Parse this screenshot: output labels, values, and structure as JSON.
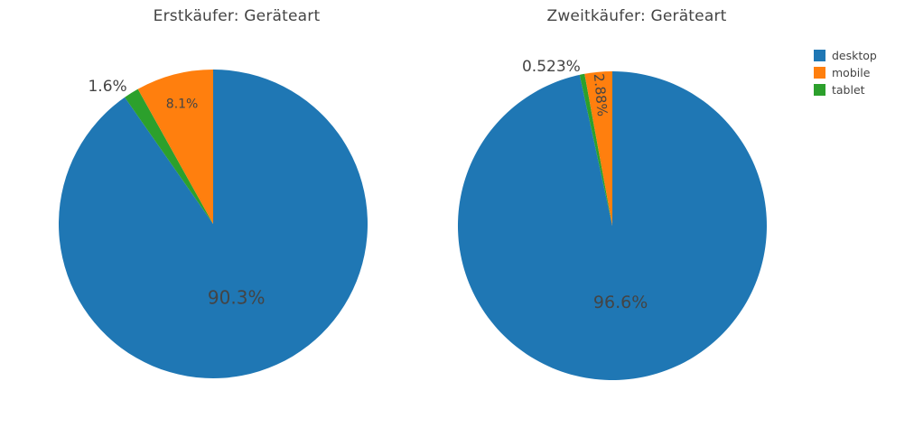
{
  "page": {
    "background": "#ffffff"
  },
  "legend": {
    "position": "top-right",
    "items": [
      {
        "label": "desktop",
        "color": "#1f77b4"
      },
      {
        "label": "mobile",
        "color": "#ff7f0e"
      },
      {
        "label": "tablet",
        "color": "#2ca02c"
      }
    ]
  },
  "chart_data": [
    {
      "type": "pie",
      "title": "Erstkäufer: Geräteart",
      "labels": [
        "desktop",
        "mobile",
        "tablet"
      ],
      "values": [
        90.3,
        8.1,
        1.6
      ],
      "value_labels": [
        "90.3%",
        "8.1%",
        "1.6%"
      ],
      "colors": [
        "#1f77b4",
        "#ff7f0e",
        "#2ca02c"
      ],
      "label_placement": [
        "inside",
        "inside",
        "outside"
      ],
      "label_rotated": [
        false,
        false,
        false
      ],
      "direction": "clockwise",
      "start_angle": "12-oclock",
      "draw_order": [
        "desktop",
        "tablet",
        "mobile"
      ],
      "label_color": "#444444",
      "legend_position": "right"
    },
    {
      "type": "pie",
      "title": "Zweitkäufer: Geräteart",
      "labels": [
        "desktop",
        "mobile",
        "tablet"
      ],
      "values": [
        96.6,
        2.88,
        0.523
      ],
      "value_labels": [
        "96.6%",
        "2.88%",
        "0.523%"
      ],
      "colors": [
        "#1f77b4",
        "#ff7f0e",
        "#2ca02c"
      ],
      "label_placement": [
        "inside",
        "inside",
        "outside"
      ],
      "label_rotated": [
        false,
        true,
        false
      ],
      "direction": "clockwise",
      "start_angle": "12-oclock",
      "draw_order": [
        "desktop",
        "tablet",
        "mobile"
      ],
      "label_color": "#444444",
      "legend_position": "right"
    }
  ]
}
